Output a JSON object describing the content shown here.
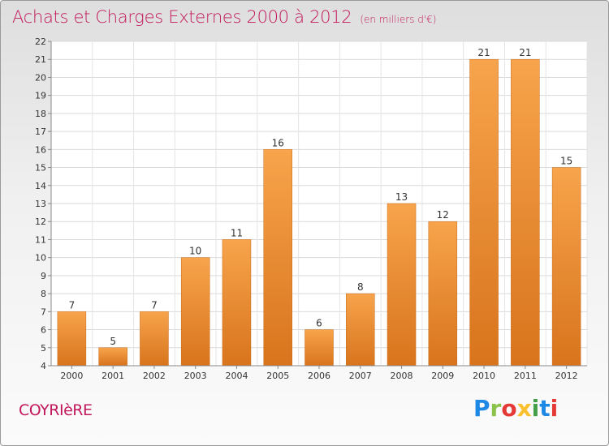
{
  "header": {
    "title": "Achats et Charges Externes 2000 à 2012",
    "subtitle": "(en milliers d'€)"
  },
  "commune": "COYRIèRE",
  "logo": {
    "text": "Proxiti",
    "letters": [
      "P",
      "r",
      "o",
      "x",
      "i",
      "t",
      "i"
    ],
    "colors": [
      "#1e88e5",
      "#8bc34a",
      "#e53935",
      "#fbc02d",
      "#43a047",
      "#1e88e5",
      "#e53935"
    ]
  },
  "colors": {
    "title": "#c2185b",
    "bar_light": "#f7a44c",
    "bar_dark": "#d8741c"
  },
  "chart_data": {
    "type": "bar",
    "categories": [
      "2000",
      "2001",
      "2002",
      "2003",
      "2004",
      "2005",
      "2006",
      "2007",
      "2008",
      "2009",
      "2010",
      "2011",
      "2012"
    ],
    "values": [
      7,
      5,
      7,
      10,
      11,
      16,
      6,
      8,
      13,
      12,
      21,
      21,
      15
    ],
    "title": "Achats et Charges Externes 2000 à 2012",
    "ylim": [
      4,
      22
    ],
    "yticks": [
      4,
      5,
      6,
      7,
      8,
      9,
      10,
      11,
      12,
      13,
      14,
      15,
      16,
      17,
      18,
      19,
      20,
      21,
      22
    ],
    "grid": true,
    "data_labels": true
  }
}
